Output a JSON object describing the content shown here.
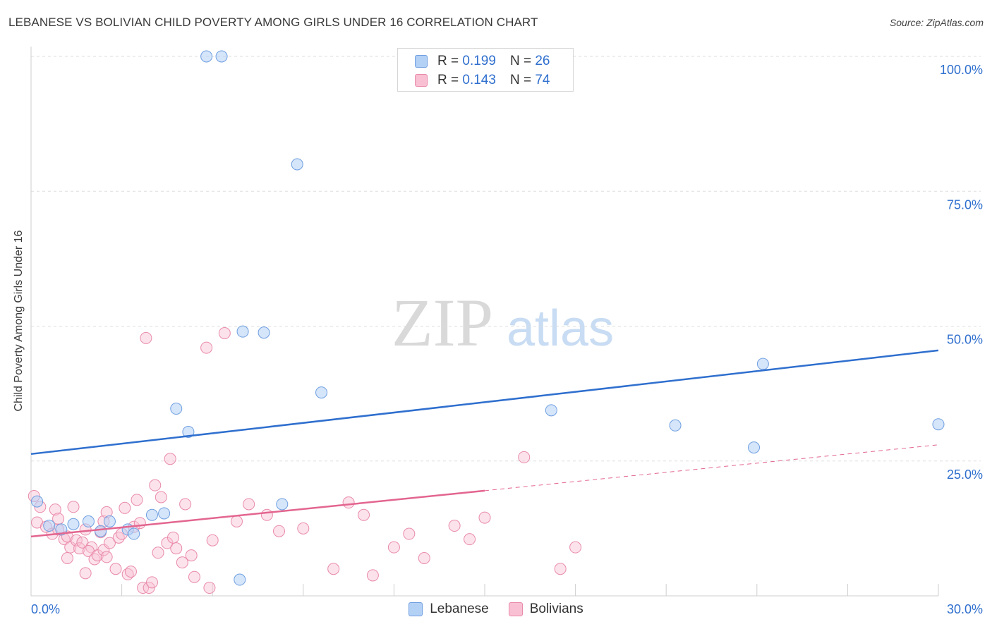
{
  "title": "LEBANESE VS BOLIVIAN CHILD POVERTY AMONG GIRLS UNDER 16 CORRELATION CHART",
  "source": "Source: ZipAtlas.com",
  "watermark": {
    "zip": "ZIP",
    "atlas": "atlas"
  },
  "legend_top": [
    {
      "r_label": "R =",
      "r_value": "0.199",
      "n_label": "N =",
      "n_value": "26"
    },
    {
      "r_label": "R =",
      "r_value": "0.143",
      "n_label": "N =",
      "n_value": "74"
    }
  ],
  "legend_bottom": [
    "Lebanese",
    "Bolivians"
  ],
  "colors": {
    "lebanese_fill": "#b3d0f5",
    "lebanese_stroke": "#6f9fe0",
    "lebanese_line": "#2f6fce",
    "bolivian_fill": "#f8c0d2",
    "bolivian_stroke": "#e98aaa",
    "bolivian_line": "#e3658f",
    "axis_text": "#2f6fce",
    "grid": "#dddddd"
  },
  "chart_data": {
    "type": "scatter",
    "title": "LEBANESE VS BOLIVIAN CHILD POVERTY AMONG GIRLS UNDER 16 CORRELATION CHART",
    "xlabel": "",
    "ylabel": "Child Poverty Among Girls Under 16",
    "xlim": [
      0,
      30
    ],
    "ylim": [
      0,
      100
    ],
    "x_tick_labels": [
      "0.0%",
      "30.0%"
    ],
    "y_tick_labels": [
      "25.0%",
      "50.0%",
      "75.0%",
      "100.0%"
    ],
    "y_ticks": [
      25,
      50,
      75,
      100
    ],
    "grid": true,
    "legend_position": "top-center",
    "series": [
      {
        "name": "Lebanese",
        "r": 0.199,
        "n": 26,
        "trend": {
          "x0": 0,
          "y0": 26.3,
          "x1": 30,
          "y1": 45.5
        },
        "points": [
          [
            0.2,
            17.5
          ],
          [
            0.6,
            13.0
          ],
          [
            1.0,
            12.3
          ],
          [
            1.4,
            13.3
          ],
          [
            1.9,
            13.8
          ],
          [
            2.3,
            12.0
          ],
          [
            2.6,
            13.8
          ],
          [
            3.2,
            12.3
          ],
          [
            3.4,
            11.5
          ],
          [
            4.0,
            15.0
          ],
          [
            4.4,
            15.3
          ],
          [
            4.8,
            34.7
          ],
          [
            5.2,
            30.4
          ],
          [
            5.8,
            100.0
          ],
          [
            6.3,
            100.0
          ],
          [
            6.9,
            3.0
          ],
          [
            7.0,
            49.0
          ],
          [
            7.7,
            48.8
          ],
          [
            8.3,
            17.0
          ],
          [
            8.8,
            80.0
          ],
          [
            9.6,
            37.7
          ],
          [
            17.2,
            34.4
          ],
          [
            21.3,
            31.6
          ],
          [
            23.9,
            27.5
          ],
          [
            24.2,
            43.0
          ],
          [
            30.0,
            31.8
          ]
        ]
      },
      {
        "name": "Bolivians",
        "r": 0.143,
        "n": 74,
        "trend": {
          "x0": 0,
          "y0": 11.0,
          "x1": 15,
          "y1": 19.5
        },
        "trend_ext": {
          "x0": 15,
          "y0": 19.5,
          "x1": 30,
          "y1": 28.0
        },
        "points": [
          [
            0.1,
            18.5
          ],
          [
            0.3,
            16.5
          ],
          [
            0.2,
            13.6
          ],
          [
            0.5,
            12.8
          ],
          [
            0.7,
            11.5
          ],
          [
            0.8,
            16.0
          ],
          [
            0.9,
            12.3
          ],
          [
            0.9,
            14.3
          ],
          [
            1.1,
            10.5
          ],
          [
            1.2,
            11.0
          ],
          [
            1.3,
            9.0
          ],
          [
            1.5,
            10.3
          ],
          [
            1.2,
            7.0
          ],
          [
            1.4,
            16.5
          ],
          [
            1.6,
            8.8
          ],
          [
            1.7,
            9.9
          ],
          [
            1.8,
            12.3
          ],
          [
            2.0,
            9.0
          ],
          [
            1.9,
            8.3
          ],
          [
            2.1,
            6.8
          ],
          [
            2.2,
            7.5
          ],
          [
            1.8,
            4.2
          ],
          [
            2.3,
            11.8
          ],
          [
            2.4,
            13.8
          ],
          [
            2.5,
            15.5
          ],
          [
            2.4,
            8.5
          ],
          [
            2.6,
            9.8
          ],
          [
            2.5,
            7.2
          ],
          [
            2.8,
            5.0
          ],
          [
            2.9,
            10.8
          ],
          [
            3.0,
            11.5
          ],
          [
            3.1,
            16.3
          ],
          [
            3.2,
            4.0
          ],
          [
            3.3,
            4.5
          ],
          [
            3.4,
            12.8
          ],
          [
            3.5,
            17.8
          ],
          [
            3.6,
            13.5
          ],
          [
            3.7,
            1.5
          ],
          [
            3.8,
            47.8
          ],
          [
            3.9,
            1.5
          ],
          [
            4.0,
            2.5
          ],
          [
            4.1,
            20.5
          ],
          [
            4.2,
            8.0
          ],
          [
            4.3,
            18.3
          ],
          [
            4.5,
            9.8
          ],
          [
            4.6,
            25.4
          ],
          [
            4.7,
            10.8
          ],
          [
            4.8,
            8.8
          ],
          [
            5.0,
            6.2
          ],
          [
            5.1,
            17.0
          ],
          [
            5.3,
            7.5
          ],
          [
            5.4,
            3.5
          ],
          [
            5.8,
            46.0
          ],
          [
            5.9,
            1.5
          ],
          [
            6.0,
            10.3
          ],
          [
            6.4,
            48.7
          ],
          [
            6.8,
            13.8
          ],
          [
            7.2,
            17.0
          ],
          [
            7.8,
            15.0
          ],
          [
            8.2,
            12.0
          ],
          [
            9.0,
            12.5
          ],
          [
            10.0,
            5.0
          ],
          [
            10.5,
            17.3
          ],
          [
            11.3,
            3.8
          ],
          [
            11.0,
            15.0
          ],
          [
            12.0,
            9.0
          ],
          [
            12.5,
            11.5
          ],
          [
            13.0,
            7.0
          ],
          [
            14.0,
            13.0
          ],
          [
            14.5,
            10.5
          ],
          [
            15.0,
            14.5
          ],
          [
            16.3,
            25.7
          ],
          [
            17.5,
            5.0
          ],
          [
            18.0,
            9.0
          ]
        ]
      }
    ]
  }
}
